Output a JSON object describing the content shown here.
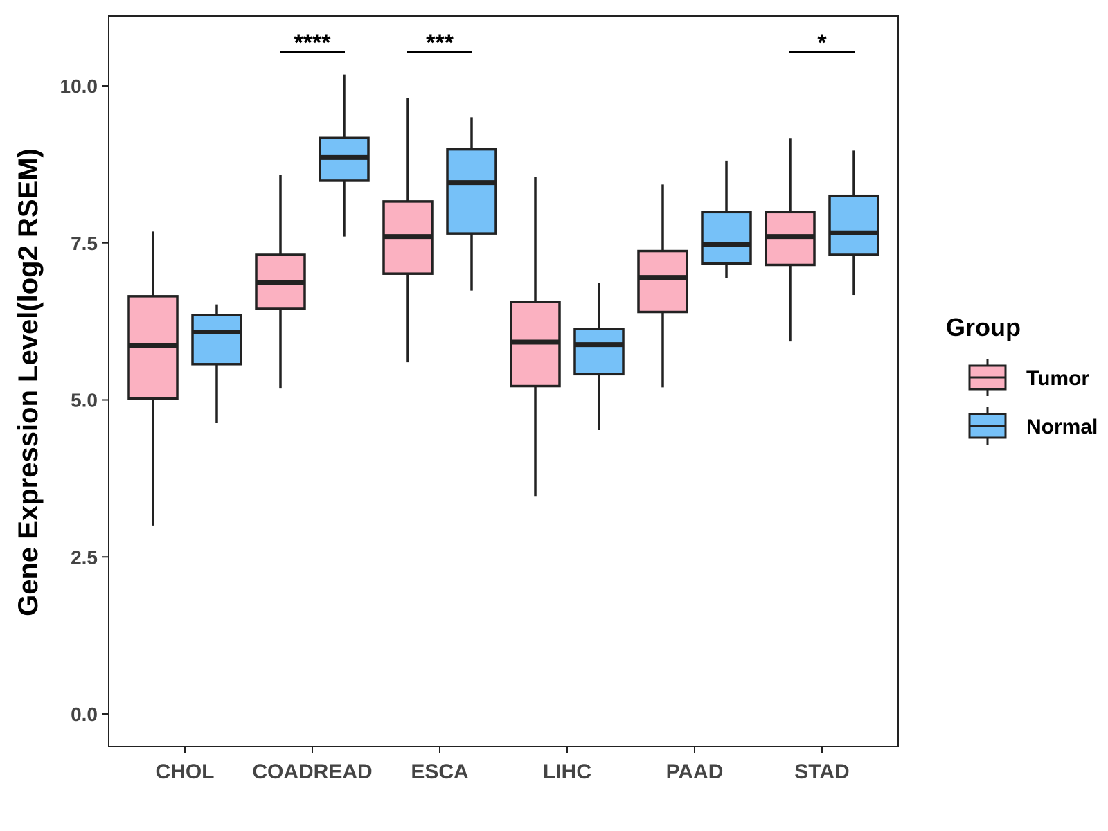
{
  "chart_data": {
    "type": "boxplot",
    "title": "",
    "xlabel": "",
    "ylabel": "Gene Expression Level(log2 RSEM)",
    "ylim": [
      -0.5,
      11.1
    ],
    "yticks": [
      0.0,
      2.5,
      5.0,
      7.5,
      10.0
    ],
    "ytick_labels": [
      "0.0",
      "2.5",
      "5.0",
      "7.5",
      "10.0"
    ],
    "grid": false,
    "legend": {
      "title": "Group",
      "position": "right",
      "entries": [
        {
          "name": "Tumor",
          "color": "#FBB1C1"
        },
        {
          "name": "Normal",
          "color": "#76C1F8"
        }
      ]
    },
    "categories": [
      "CHOL",
      "COADREAD",
      "ESCA",
      "LIHC",
      "PAAD",
      "STAD"
    ],
    "series": [
      {
        "name": "Tumor",
        "color": "#FBB1C1",
        "boxes": [
          {
            "min": 3.0,
            "q1": 5.02,
            "median": 5.87,
            "q3": 6.65,
            "max": 7.68
          },
          {
            "min": 5.18,
            "q1": 6.45,
            "median": 6.87,
            "q3": 7.31,
            "max": 8.58
          },
          {
            "min": 5.6,
            "q1": 7.01,
            "median": 7.6,
            "q3": 8.16,
            "max": 9.81
          },
          {
            "min": 3.47,
            "q1": 5.22,
            "median": 5.92,
            "q3": 6.56,
            "max": 8.55
          },
          {
            "min": 5.2,
            "q1": 6.4,
            "median": 6.95,
            "q3": 7.37,
            "max": 8.43
          },
          {
            "min": 5.93,
            "q1": 7.15,
            "median": 7.6,
            "q3": 7.99,
            "max": 9.17
          }
        ]
      },
      {
        "name": "Normal",
        "color": "#76C1F8",
        "boxes": [
          {
            "min": 4.63,
            "q1": 5.57,
            "median": 6.08,
            "q3": 6.35,
            "max": 6.52
          },
          {
            "min": 7.6,
            "q1": 8.49,
            "median": 8.86,
            "q3": 9.17,
            "max": 10.18
          },
          {
            "min": 6.74,
            "q1": 7.65,
            "median": 8.46,
            "q3": 8.99,
            "max": 9.5
          },
          {
            "min": 4.52,
            "q1": 5.41,
            "median": 5.88,
            "q3": 6.13,
            "max": 6.86
          },
          {
            "min": 6.94,
            "q1": 7.17,
            "median": 7.48,
            "q3": 7.99,
            "max": 8.81
          },
          {
            "min": 6.67,
            "q1": 7.31,
            "median": 7.66,
            "q3": 8.25,
            "max": 8.97
          }
        ]
      }
    ],
    "significance": [
      {
        "category": "COADREAD",
        "label": "****",
        "y": 10.54
      },
      {
        "category": "ESCA",
        "label": "***",
        "y": 10.54
      },
      {
        "category": "STAD",
        "label": "*",
        "y": 10.54
      }
    ]
  }
}
